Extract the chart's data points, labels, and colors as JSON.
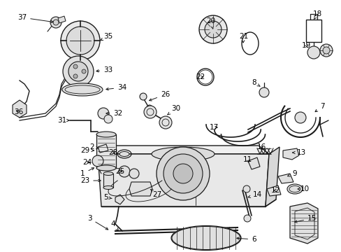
{
  "bg_color": "#ffffff",
  "line_color": "#1a1a1a",
  "text_color": "#000000",
  "fig_width": 4.89,
  "fig_height": 3.6,
  "dpi": 100,
  "label_fontsize": 7.5,
  "title_fontsize": 7.0
}
